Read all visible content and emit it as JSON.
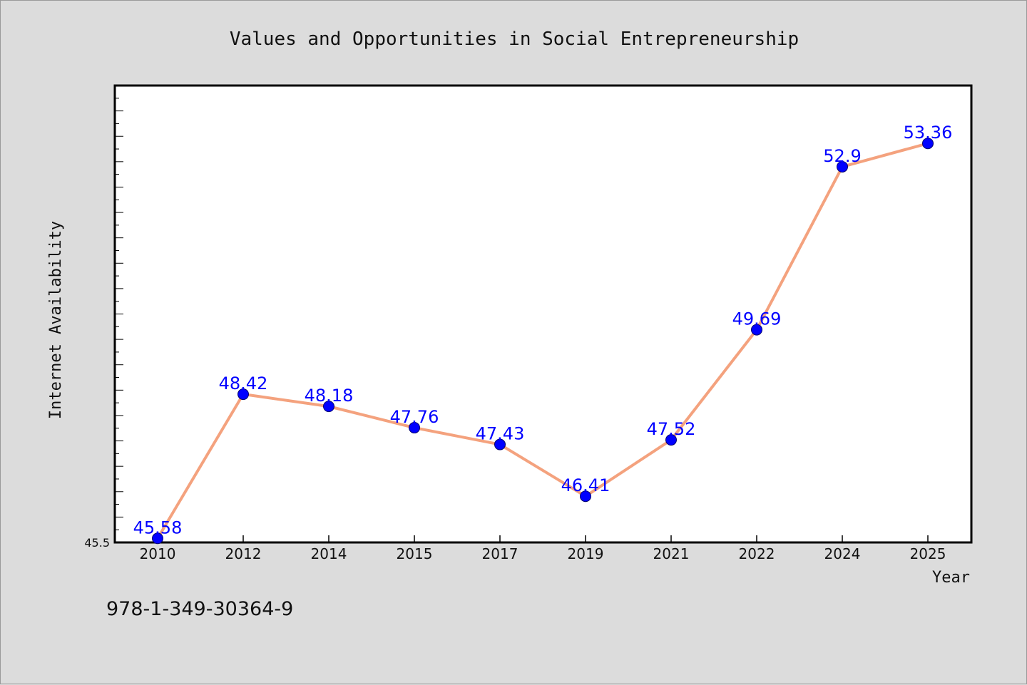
{
  "chart_data": {
    "type": "line",
    "title": "Values and Opportunities in Social Entrepreneurship",
    "xlabel": "Year",
    "ylabel": "Internet Availability",
    "categories": [
      "2010",
      "2012",
      "2014",
      "2015",
      "2017",
      "2019",
      "2021",
      "2022",
      "2024",
      "2025"
    ],
    "series": [
      {
        "values": [
          45.58,
          48.42,
          48.18,
          47.76,
          47.43,
          46.41,
          47.52,
          49.69,
          52.9,
          53.36
        ],
        "data_labels": [
          "45.58",
          "48.42",
          "48.18",
          "47.76",
          "47.43",
          "46.41",
          "47.52",
          "49.69",
          "52.9",
          "53.36"
        ]
      }
    ],
    "ylim": [
      45.5,
      54.5
    ],
    "y_tick_labels": [
      "45.5"
    ],
    "grid": false,
    "line_color": "#f4a27e",
    "marker_color": "#0000ff",
    "label_color": "#0000ff"
  },
  "footer": {
    "isbn": "978-1-349-30364-9"
  }
}
